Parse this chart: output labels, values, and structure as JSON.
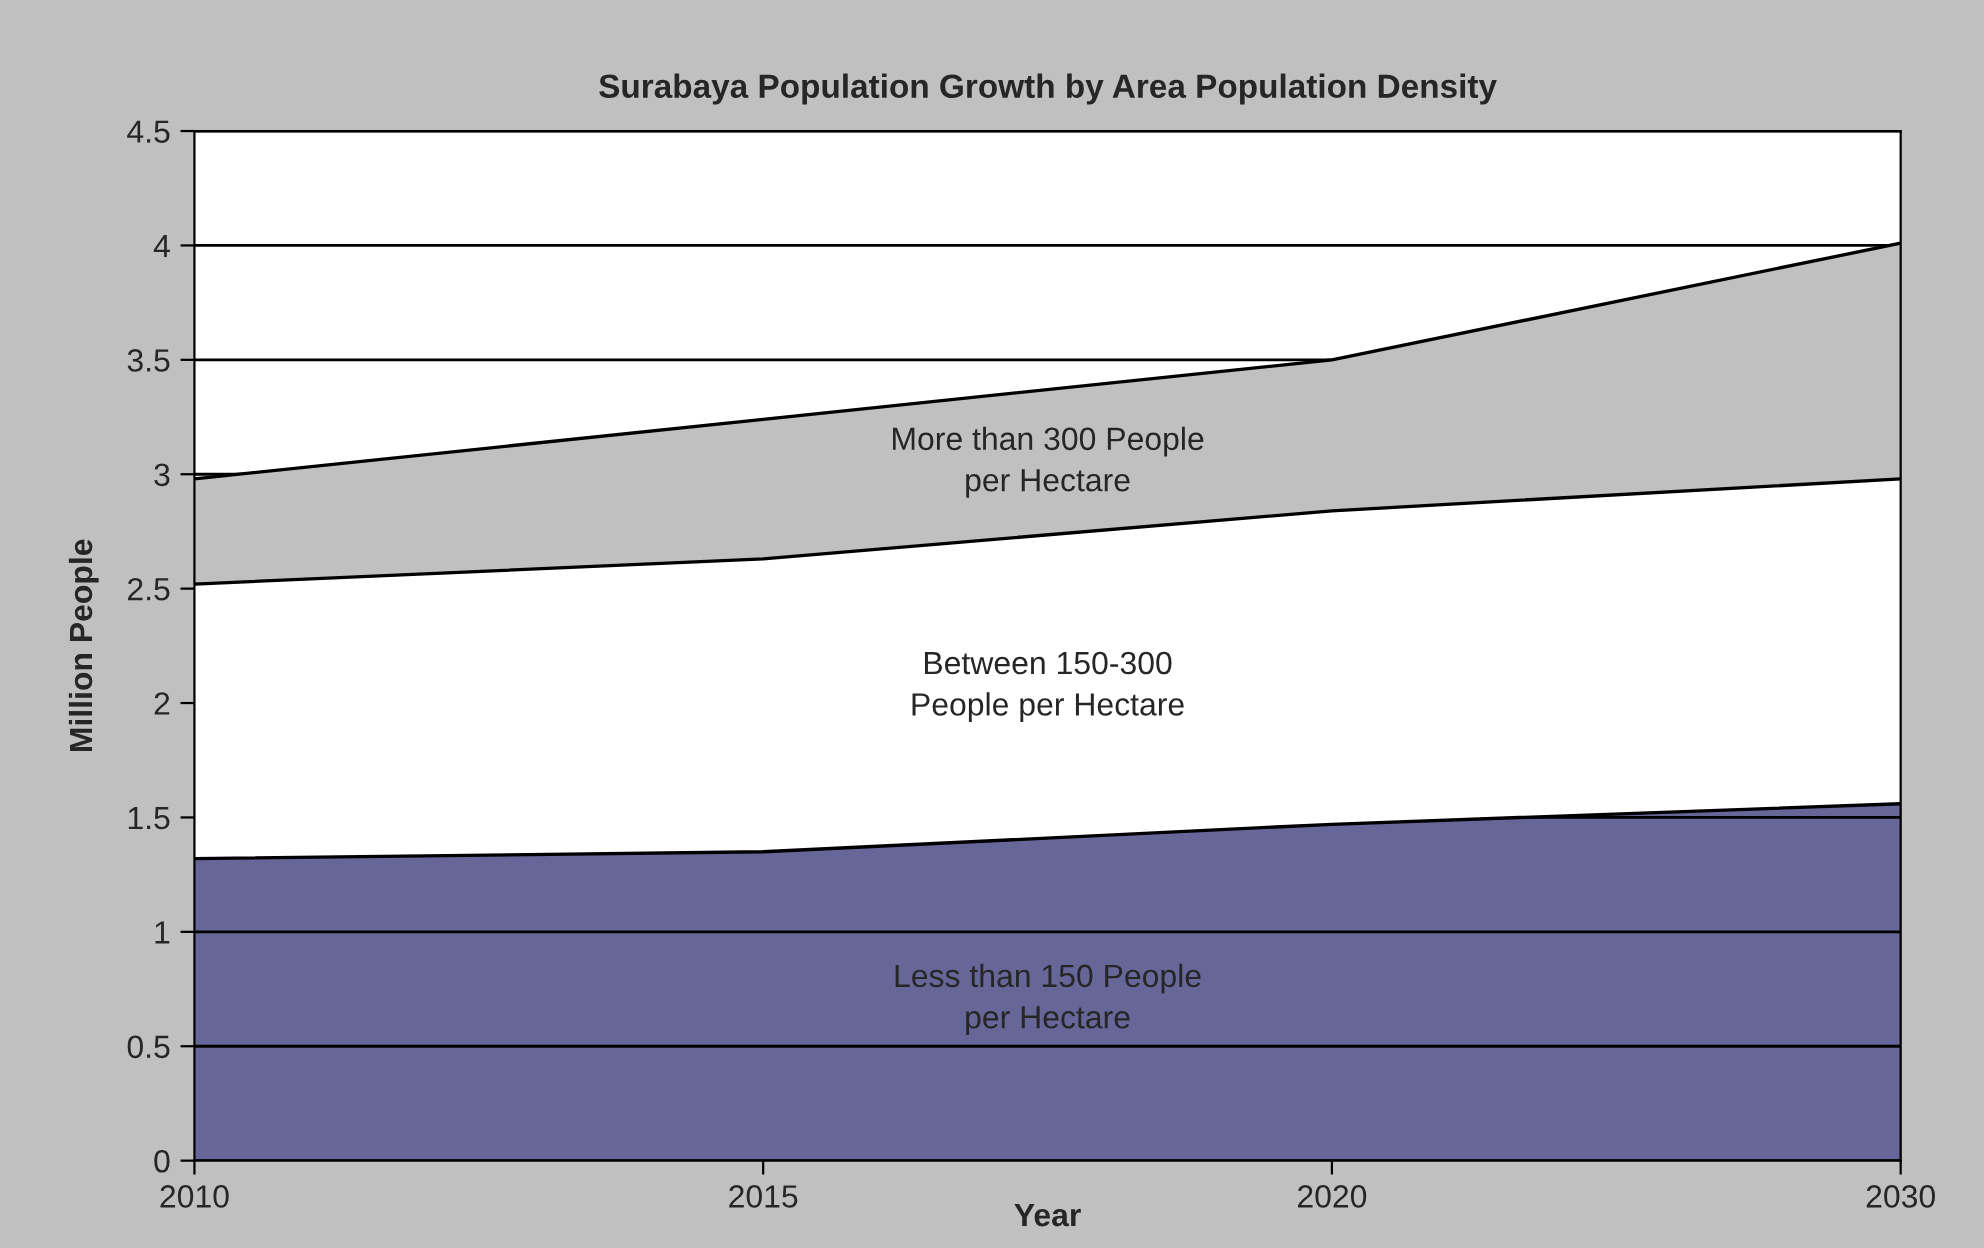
{
  "chart_data": {
    "type": "area",
    "title": "Surabaya Population Growth by Area Population Density",
    "xlabel": "Year",
    "ylabel": "Million People",
    "categories": [
      "2010",
      "2015",
      "2020",
      "2030"
    ],
    "stacked": true,
    "series": [
      {
        "name": "Less than 150 People\nper Hectare",
        "color": "#666699",
        "values": [
          1.32,
          1.35,
          1.47,
          1.56
        ]
      },
      {
        "name": "Between 150-300\nPeople per Hectare",
        "color": "#ffffff",
        "values": [
          1.2,
          1.28,
          1.37,
          1.42
        ]
      },
      {
        "name": "More than 300 People\nper Hectare",
        "color": "#c0c0c0",
        "values": [
          0.46,
          0.61,
          0.66,
          1.03
        ]
      }
    ],
    "ylim": [
      0,
      4.5
    ],
    "yticks": [
      0,
      0.5,
      1,
      1.5,
      2,
      2.5,
      3,
      3.5,
      4,
      4.5
    ],
    "grid": "y",
    "legend": false
  }
}
